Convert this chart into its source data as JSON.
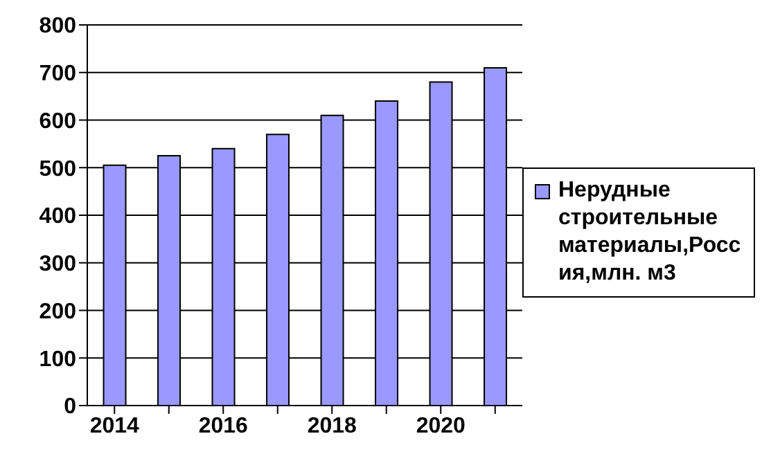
{
  "chart_data": {
    "type": "bar",
    "categories": [
      "2014",
      null,
      "2016",
      null,
      "2018",
      null,
      "2020",
      null
    ],
    "series": [
      {
        "name": "Нерудные строительные материалы,Россия,млн. м3",
        "color": "#9999ff",
        "values": [
          505,
          525,
          540,
          570,
          610,
          640,
          680,
          710
        ]
      }
    ],
    "ylim": [
      0,
      800
    ],
    "yticks": [
      0,
      100,
      200,
      300,
      400,
      500,
      600,
      700,
      800
    ],
    "grid": "y",
    "legend": "right"
  }
}
